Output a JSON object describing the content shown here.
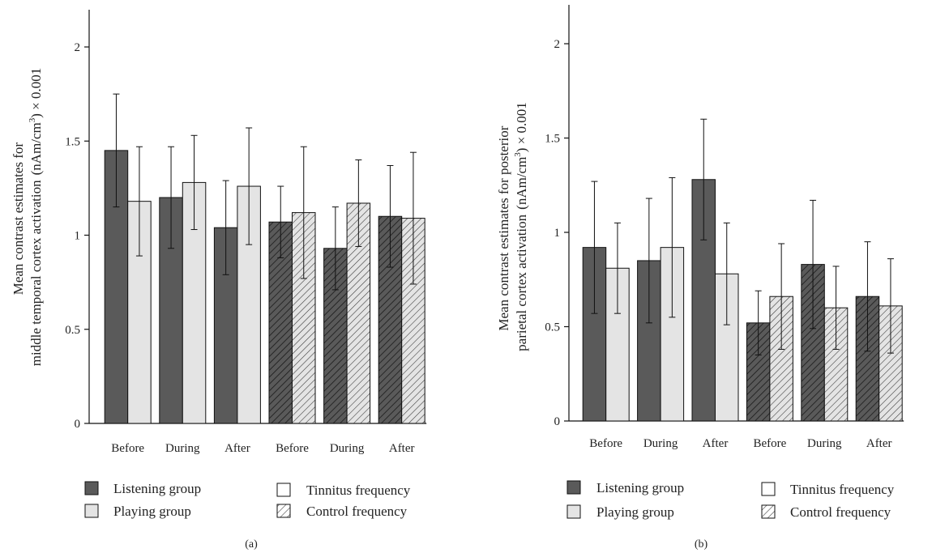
{
  "chart_data": [
    {
      "type": "bar",
      "panel_label": "(a)",
      "ylabel_line1": "Mean contrast estimates for",
      "ylabel_line2": "middle temporal cortex activation",
      "ylabel_unit_pre": "(nAm/cm",
      "ylabel_unit_sup": "3",
      "ylabel_unit_post": ") × 0.001",
      "ylim": [
        0,
        2.2
      ],
      "yticks": [
        "0",
        "0.5",
        "1",
        "1.5",
        "2"
      ],
      "categories": [
        "Before",
        "During",
        "After",
        "Before",
        "During",
        "After"
      ],
      "conditions": [
        "tinnitus",
        "tinnitus",
        "tinnitus",
        "control",
        "control",
        "control"
      ],
      "series": [
        {
          "name": "Listening group",
          "values": [
            1.45,
            1.2,
            1.04,
            1.07,
            0.93,
            1.1
          ],
          "errors": [
            0.3,
            0.27,
            0.25,
            0.19,
            0.22,
            0.27
          ]
        },
        {
          "name": "Playing group",
          "values": [
            1.18,
            1.28,
            1.26,
            1.12,
            1.17,
            1.09
          ],
          "errors": [
            0.29,
            0.25,
            0.31,
            0.35,
            0.23,
            0.35
          ]
        }
      ]
    },
    {
      "type": "bar",
      "panel_label": "(b)",
      "ylabel_line1": "Mean contrast estimates for posterior",
      "ylabel_line2": "parietal cortex activation",
      "ylabel_unit_pre": "(nAm/cm",
      "ylabel_unit_sup": "3",
      "ylabel_unit_post": ") × 0.001",
      "ylim": [
        0,
        2.2
      ],
      "yticks": [
        "0",
        "0.5",
        "1",
        "1.5",
        "2"
      ],
      "categories": [
        "Before",
        "During",
        "After",
        "Before",
        "During",
        "After"
      ],
      "conditions": [
        "tinnitus",
        "tinnitus",
        "tinnitus",
        "control",
        "control",
        "control"
      ],
      "series": [
        {
          "name": "Listening group",
          "values": [
            0.92,
            0.85,
            1.28,
            0.52,
            0.83,
            0.66
          ],
          "errors": [
            0.35,
            0.33,
            0.32,
            0.17,
            0.34,
            0.29
          ]
        },
        {
          "name": "Playing group",
          "values": [
            0.81,
            0.92,
            0.78,
            0.66,
            0.6,
            0.61
          ],
          "errors": [
            0.24,
            0.37,
            0.27,
            0.28,
            0.22,
            0.25
          ]
        }
      ]
    }
  ],
  "legend": {
    "listening": "Listening group",
    "playing": "Playing group",
    "tinnitus": "Tinnitus frequency",
    "control": "Control frequency"
  },
  "colors": {
    "listening": "#5a5a5a",
    "playing": "#e4e4e4",
    "tinnitus": "#ffffff",
    "hatch_stroke": "#222222",
    "axis": "#111111"
  }
}
